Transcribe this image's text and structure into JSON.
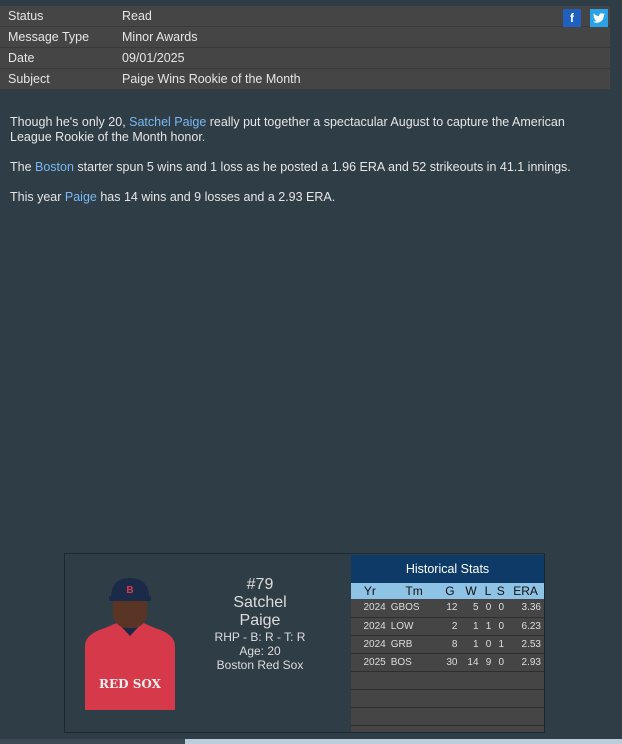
{
  "header": {
    "rows": [
      {
        "label": "Status",
        "value": "Read"
      },
      {
        "label": "Message Type",
        "value": "Minor Awards"
      },
      {
        "label": "Date",
        "value": "09/01/2025"
      },
      {
        "label": "Subject",
        "value": "Paige Wins Rookie of the Month"
      }
    ],
    "social": {
      "facebook": "f",
      "twitter": "t",
      "facebook_color": "#1e5fbf",
      "twitter_color": "#2aa3e6"
    }
  },
  "body": {
    "p1": {
      "a": "Though he's only 20, ",
      "link": "Satchel Paige",
      "b": " really put together a spectacular August to capture the American League Rookie of the Month honor."
    },
    "p2": {
      "a": "The ",
      "link": "Boston",
      "b": " starter spun 5 wins and 1 loss as he posted a 1.96 ERA and 52 strikeouts in 41.1 innings."
    },
    "p3": {
      "a": "This year ",
      "link": "Paige",
      "b": " has 14 wins and 9 losses and a 2.93 ERA."
    }
  },
  "player": {
    "number": "#79",
    "first": "Satchel",
    "last": "Paige",
    "bio": "RHP - B: R - T: R",
    "age": "Age: 20",
    "team": "Boston Red Sox",
    "jersey_text": "RED SOX"
  },
  "stats": {
    "title": "Historical Stats",
    "columns": [
      "Yr",
      "Tm",
      "G",
      "W",
      "L",
      "S",
      "ERA"
    ],
    "rows": [
      [
        "2024",
        "GBOS",
        "12",
        "5",
        "0",
        "0",
        "3.36"
      ],
      [
        "2024",
        "LOW",
        "2",
        "1",
        "1",
        "0",
        "6.23"
      ],
      [
        "2024",
        "GRB",
        "8",
        "1",
        "0",
        "1",
        "2.53"
      ],
      [
        "2025",
        "BOS",
        "30",
        "14",
        "9",
        "0",
        "2.93"
      ]
    ]
  }
}
